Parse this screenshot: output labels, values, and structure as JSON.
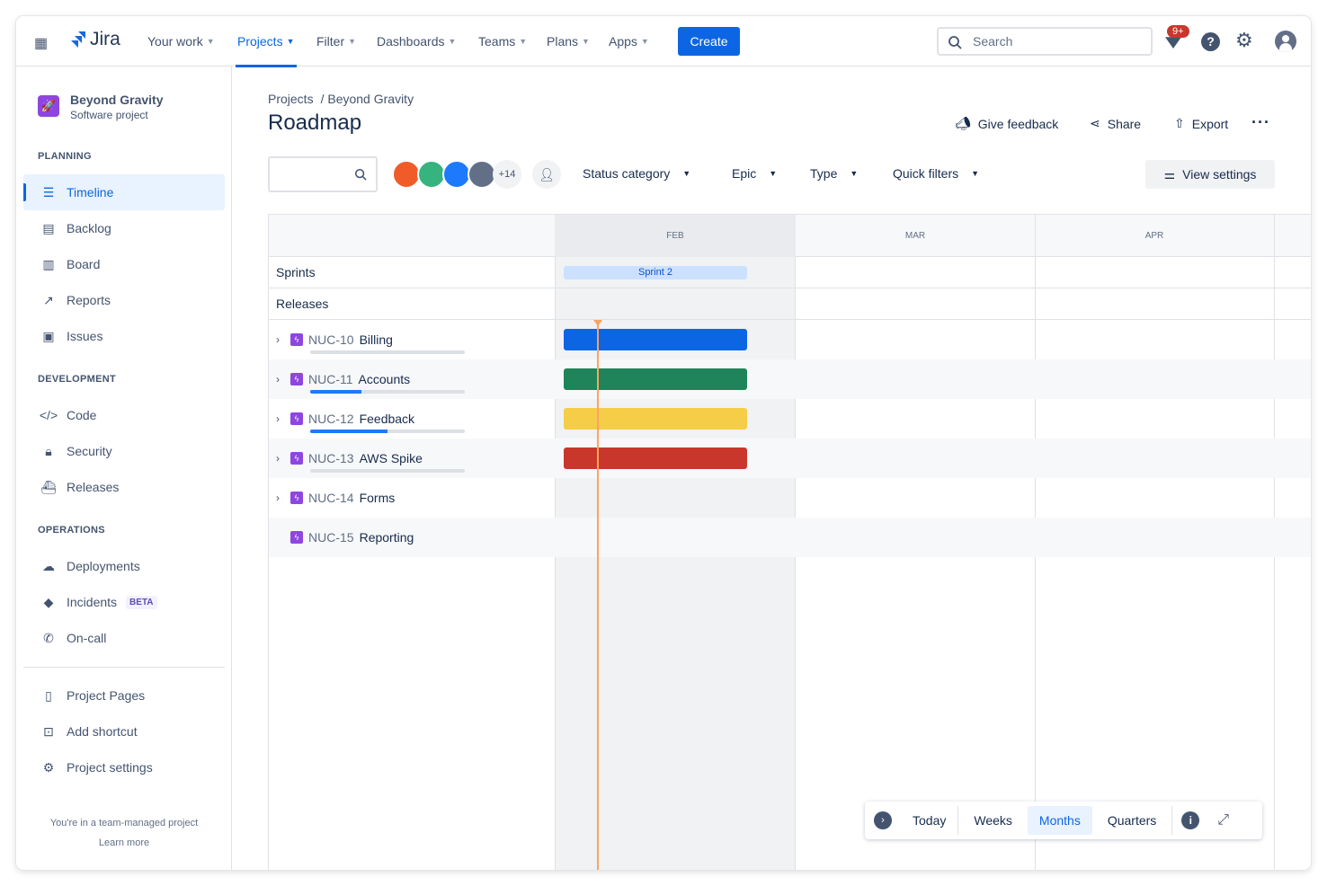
{
  "topnav": {
    "logo": "Jira",
    "items": [
      {
        "label": "Your work"
      },
      {
        "label": "Projects",
        "active": true
      },
      {
        "label": "Filter"
      },
      {
        "label": "Dashboards"
      },
      {
        "label": "Teams"
      },
      {
        "label": "Plans"
      },
      {
        "label": "Apps"
      }
    ],
    "create": "Create",
    "search_placeholder": "Search",
    "notifications_badge": "9+"
  },
  "sidebar": {
    "project_name": "Beyond Gravity",
    "project_type": "Software project",
    "sections": [
      {
        "title": "PLANNING"
      },
      {
        "title": "DEVELOPMENT"
      },
      {
        "title": "OPERATIONS"
      }
    ],
    "items": [
      {
        "label": "Timeline"
      },
      {
        "label": "Backlog"
      },
      {
        "label": "Board"
      },
      {
        "label": "Reports"
      },
      {
        "label": "Issues"
      },
      {
        "label": "Code"
      },
      {
        "label": "Security"
      },
      {
        "label": "Releases"
      },
      {
        "label": "Deployments"
      },
      {
        "label": "Incidents",
        "badge": "BETA"
      },
      {
        "label": "On-call"
      },
      {
        "label": "Project Pages"
      },
      {
        "label": "Add shortcut"
      },
      {
        "label": "Project settings"
      }
    ],
    "footer": "You're in a team-managed project",
    "learn_more": "Learn more"
  },
  "main": {
    "breadcrumb": [
      "Projects",
      "/ Beyond Gravity"
    ],
    "title": "Roadmap",
    "actions": {
      "feedback": "Give feedback",
      "share": "Share",
      "export": "Export"
    },
    "avatars_more": "+14",
    "filters": [
      "Status category",
      "Epic",
      "Type",
      "Quick filters"
    ],
    "view_settings": "View settings"
  },
  "timeline": {
    "months": [
      "FEB",
      "MAR",
      "APR"
    ],
    "sprints_label": "Sprints",
    "sprint": "Sprint 2",
    "releases_label": "Releases",
    "epics": [
      {
        "key": "NUC-10",
        "name": "Billing",
        "progress": 0,
        "color": "#0c66e4",
        "has_bar": true
      },
      {
        "key": "NUC-11",
        "name": "Accounts",
        "progress": 33,
        "color": "#1f845a",
        "has_bar": true
      },
      {
        "key": "NUC-12",
        "name": "Feedback",
        "progress": 50,
        "color": "#f5cd47",
        "has_bar": true
      },
      {
        "key": "NUC-13",
        "name": "AWS Spike",
        "progress": 0,
        "color": "#c9372c",
        "has_bar": true
      },
      {
        "key": "NUC-14",
        "name": "Forms",
        "has_bar": false
      },
      {
        "key": "NUC-15",
        "name": "Reporting",
        "has_bar": false
      }
    ]
  },
  "zoom_controls": {
    "today": "Today",
    "options": [
      "Weeks",
      "Months",
      "Quarters"
    ],
    "selected": "Months"
  }
}
